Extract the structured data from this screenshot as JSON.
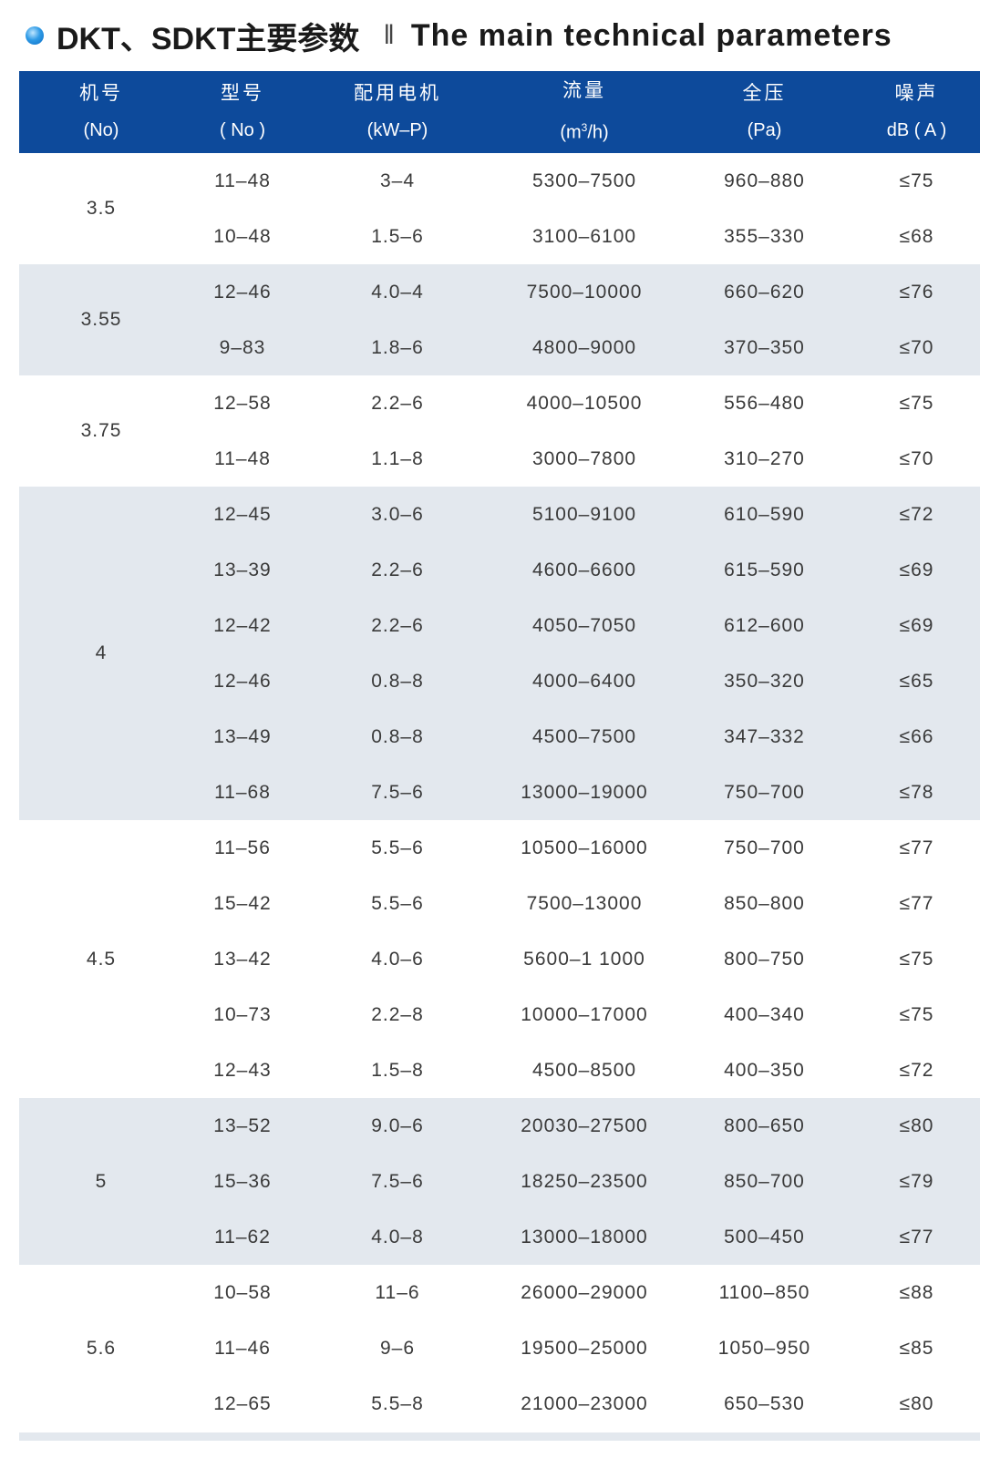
{
  "title": {
    "cn": "DKT、SDKT主要参数",
    "separator": "‖",
    "en": "The main technical parameters"
  },
  "colors": {
    "header_bg": "#0d4a9b",
    "stripe": "#e3e8ee",
    "bullet": "#2f9be6"
  },
  "headers": [
    {
      "cn": "机号",
      "unit": "(No)"
    },
    {
      "cn": "型号",
      "unit": "( No )"
    },
    {
      "cn": "配用电机",
      "unit": "(kW–P)"
    },
    {
      "cn": "流量",
      "unit_pre": "(m",
      "unit_sup": "3",
      "unit_post": "/h)"
    },
    {
      "cn": "全压",
      "unit": "(Pa)"
    },
    {
      "cn": "噪声",
      "unit": "dB ( A )"
    }
  ],
  "groups": [
    {
      "no": "3.5",
      "rows": [
        [
          "11–48",
          "3–4",
          "5300–7500",
          "960–880",
          "≤75"
        ],
        [
          "10–48",
          "1.5–6",
          "3100–6100",
          "355–330",
          "≤68"
        ]
      ]
    },
    {
      "no": "3.55",
      "rows": [
        [
          "12–46",
          "4.0–4",
          "7500–10000",
          "660–620",
          "≤76"
        ],
        [
          "9–83",
          "1.8–6",
          "4800–9000",
          "370–350",
          "≤70"
        ]
      ]
    },
    {
      "no": "3.75",
      "rows": [
        [
          "12–58",
          "2.2–6",
          "4000–10500",
          "556–480",
          "≤75"
        ],
        [
          "11–48",
          "1.1–8",
          "3000–7800",
          "310–270",
          "≤70"
        ]
      ]
    },
    {
      "no": "4",
      "rows": [
        [
          "12–45",
          "3.0–6",
          "5100–9100",
          "610–590",
          "≤72"
        ],
        [
          "13–39",
          "2.2–6",
          "4600–6600",
          "615–590",
          "≤69"
        ],
        [
          "12–42",
          "2.2–6",
          "4050–7050",
          "612–600",
          "≤69"
        ],
        [
          "12–46",
          "0.8–8",
          "4000–6400",
          "350–320",
          "≤65"
        ],
        [
          "13–49",
          "0.8–8",
          "4500–7500",
          "347–332",
          "≤66"
        ],
        [
          "11–68",
          "7.5–6",
          "13000–19000",
          "750–700",
          "≤78"
        ]
      ]
    },
    {
      "no": "4.5",
      "rows": [
        [
          "11–56",
          "5.5–6",
          "10500–16000",
          "750–700",
          "≤77"
        ],
        [
          "15–42",
          "5.5–6",
          "7500–13000",
          "850–800",
          "≤77"
        ],
        [
          "13–42",
          "4.0–6",
          "5600–1 1000",
          "800–750",
          "≤75"
        ],
        [
          "10–73",
          "2.2–8",
          "10000–17000",
          "400–340",
          "≤75"
        ],
        [
          "12–43",
          "1.5–8",
          "4500–8500",
          "400–350",
          "≤72"
        ]
      ]
    },
    {
      "no": "5",
      "rows": [
        [
          "13–52",
          "9.0–6",
          "20030–27500",
          "800–650",
          "≤80"
        ],
        [
          "15–36",
          "7.5–6",
          "18250–23500",
          "850–700",
          "≤79"
        ],
        [
          "11–62",
          "4.0–8",
          "13000–18000",
          "500–450",
          "≤77"
        ]
      ]
    },
    {
      "no": "5.6",
      "rows": [
        [
          "10–58",
          "11–6",
          "26000–29000",
          "1100–850",
          "≤88"
        ],
        [
          "11–46",
          "9–6",
          "19500–25000",
          "1050–950",
          "≤85"
        ],
        [
          "12–65",
          "5.5–8",
          "21000–23000",
          "650–530",
          "≤80"
        ]
      ]
    }
  ]
}
